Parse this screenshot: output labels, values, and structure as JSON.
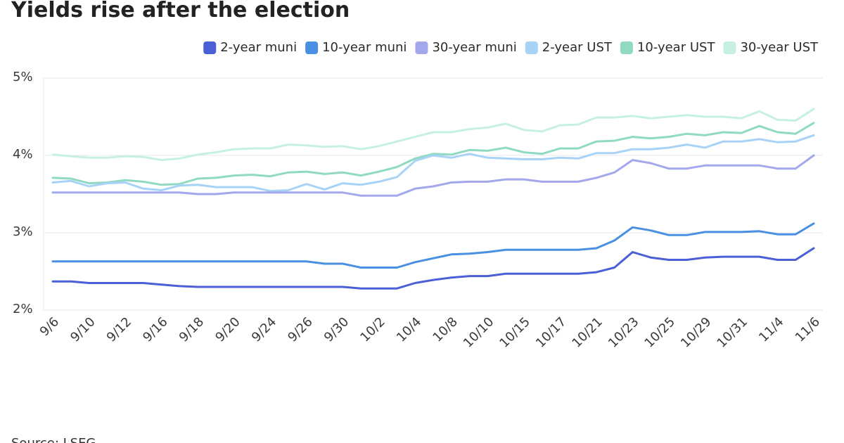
{
  "chart_data": {
    "type": "line",
    "title": "Yields rise after the election",
    "source": "Source: LSEG",
    "categories": [
      "9/6",
      null,
      "9/10",
      null,
      "9/12",
      null,
      "9/16",
      null,
      "9/18",
      null,
      "9/20",
      null,
      "9/24",
      null,
      "9/26",
      null,
      "9/30",
      null,
      "10/2",
      null,
      "10/4",
      null,
      "10/8",
      null,
      "10/10",
      null,
      "10/15",
      null,
      "10/17",
      null,
      "10/21",
      null,
      "10/23",
      null,
      "10/25",
      null,
      "10/29",
      null,
      "10/31",
      null,
      "11/4",
      null,
      "11/6"
    ],
    "ylim": [
      2,
      5
    ],
    "yticks": [
      {
        "value": 2,
        "label": "2%"
      },
      {
        "value": 3,
        "label": "3%"
      },
      {
        "value": 4,
        "label": "4%"
      },
      {
        "value": 5,
        "label": "5%"
      }
    ],
    "grid": true,
    "legend": "top-right",
    "series": [
      {
        "name": "2-year muni",
        "color": "#4b5fd6",
        "values": [
          2.37,
          2.37,
          2.35,
          2.35,
          2.35,
          2.35,
          2.33,
          2.31,
          2.3,
          2.3,
          2.3,
          2.3,
          2.3,
          2.3,
          2.3,
          2.3,
          2.3,
          2.28,
          2.28,
          2.28,
          2.35,
          2.39,
          2.42,
          2.44,
          2.44,
          2.47,
          2.47,
          2.47,
          2.47,
          2.47,
          2.49,
          2.55,
          2.75,
          2.68,
          2.65,
          2.65,
          2.68,
          2.69,
          2.69,
          2.69,
          2.65,
          2.65,
          2.8
        ]
      },
      {
        "name": "10-year muni",
        "color": "#4a90e2",
        "values": [
          2.63,
          2.63,
          2.63,
          2.63,
          2.63,
          2.63,
          2.63,
          2.63,
          2.63,
          2.63,
          2.63,
          2.63,
          2.63,
          2.63,
          2.63,
          2.6,
          2.6,
          2.55,
          2.55,
          2.55,
          2.62,
          2.67,
          2.72,
          2.73,
          2.75,
          2.78,
          2.78,
          2.78,
          2.78,
          2.78,
          2.8,
          2.9,
          3.07,
          3.03,
          2.97,
          2.97,
          3.01,
          3.01,
          3.01,
          3.02,
          2.98,
          2.98,
          3.12
        ]
      },
      {
        "name": "30-year muni",
        "color": "#a3a8ec",
        "values": [
          3.52,
          3.52,
          3.52,
          3.52,
          3.52,
          3.52,
          3.52,
          3.52,
          3.5,
          3.5,
          3.52,
          3.52,
          3.52,
          3.52,
          3.52,
          3.52,
          3.52,
          3.48,
          3.48,
          3.48,
          3.57,
          3.6,
          3.65,
          3.66,
          3.66,
          3.69,
          3.69,
          3.66,
          3.66,
          3.66,
          3.71,
          3.78,
          3.94,
          3.9,
          3.83,
          3.83,
          3.87,
          3.87,
          3.87,
          3.87,
          3.83,
          3.83,
          4.0
        ]
      },
      {
        "name": "2-year UST",
        "color": "#a8d3f7",
        "values": [
          3.65,
          3.67,
          3.6,
          3.64,
          3.65,
          3.57,
          3.55,
          3.61,
          3.62,
          3.59,
          3.59,
          3.59,
          3.54,
          3.55,
          3.63,
          3.56,
          3.64,
          3.62,
          3.66,
          3.72,
          3.93,
          4.0,
          3.97,
          4.02,
          3.97,
          3.96,
          3.95,
          3.95,
          3.97,
          3.96,
          4.03,
          4.03,
          4.08,
          4.08,
          4.1,
          4.14,
          4.1,
          4.18,
          4.18,
          4.21,
          4.17,
          4.18,
          4.26
        ]
      },
      {
        "name": "10-year UST",
        "color": "#90dac3",
        "values": [
          3.71,
          3.7,
          3.64,
          3.65,
          3.68,
          3.66,
          3.62,
          3.63,
          3.7,
          3.71,
          3.74,
          3.75,
          3.73,
          3.78,
          3.79,
          3.76,
          3.78,
          3.74,
          3.79,
          3.85,
          3.96,
          4.02,
          4.01,
          4.07,
          4.06,
          4.1,
          4.04,
          4.02,
          4.09,
          4.09,
          4.18,
          4.19,
          4.24,
          4.22,
          4.24,
          4.28,
          4.26,
          4.3,
          4.29,
          4.38,
          4.3,
          4.28,
          4.42
        ]
      },
      {
        "name": "30-year UST",
        "color": "#c6f0e3",
        "values": [
          4.01,
          3.99,
          3.97,
          3.97,
          3.99,
          3.98,
          3.94,
          3.96,
          4.01,
          4.04,
          4.08,
          4.09,
          4.09,
          4.14,
          4.13,
          4.11,
          4.12,
          4.08,
          4.12,
          4.18,
          4.24,
          4.3,
          4.3,
          4.34,
          4.36,
          4.41,
          4.33,
          4.31,
          4.39,
          4.4,
          4.49,
          4.49,
          4.51,
          4.48,
          4.5,
          4.52,
          4.5,
          4.5,
          4.48,
          4.57,
          4.46,
          4.45,
          4.6
        ]
      }
    ]
  }
}
